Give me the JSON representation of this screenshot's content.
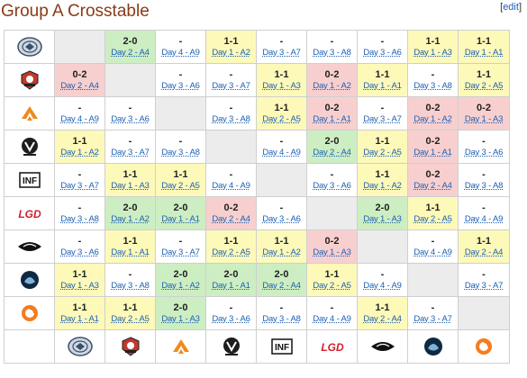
{
  "title": "Group A Crosstable",
  "edit_link": "edit",
  "teams": [
    {
      "key": "eg",
      "icon": "eg-logo-icon"
    },
    {
      "key": "mss",
      "icon": "mss-logo-icon"
    },
    {
      "key": "fnatic",
      "icon": "fnatic-logo-icon"
    },
    {
      "key": "vitality",
      "icon": "vitality-logo-icon"
    },
    {
      "key": "inf",
      "icon": "inf-logo-icon"
    },
    {
      "key": "lgd",
      "icon": "lgd-logo-icon"
    },
    {
      "key": "secret",
      "icon": "secret-logo-icon"
    },
    {
      "key": "liquid",
      "icon": "liquid-logo-icon"
    },
    {
      "key": "orange",
      "icon": "orange-logo-icon"
    }
  ],
  "rows": [
    [
      null,
      {
        "r": "w",
        "s": "2-0",
        "d": "Day 2 - A4"
      },
      {
        "r": "n",
        "s": "-",
        "d": "Day 4 - A9"
      },
      {
        "r": "d",
        "s": "1-1",
        "d": "Day 1 - A2"
      },
      {
        "r": "n",
        "s": "-",
        "d": "Day 3 - A7"
      },
      {
        "r": "n",
        "s": "-",
        "d": "Day 3 - A8"
      },
      {
        "r": "n",
        "s": "-",
        "d": "Day 3 - A6"
      },
      {
        "r": "d",
        "s": "1-1",
        "d": "Day 1 - A3"
      },
      {
        "r": "d",
        "s": "1-1",
        "d": "Day 1 - A1"
      }
    ],
    [
      {
        "r": "l",
        "s": "0-2",
        "d": "Day 2 - A4"
      },
      null,
      {
        "r": "n",
        "s": "-",
        "d": "Day 3 - A6"
      },
      {
        "r": "n",
        "s": "-",
        "d": "Day 3 - A7"
      },
      {
        "r": "d",
        "s": "1-1",
        "d": "Day 1 - A3"
      },
      {
        "r": "l",
        "s": "0-2",
        "d": "Day 1 - A2"
      },
      {
        "r": "d",
        "s": "1-1",
        "d": "Day 1 - A1"
      },
      {
        "r": "n",
        "s": "-",
        "d": "Day 3 - A8"
      },
      {
        "r": "d",
        "s": "1-1",
        "d": "Day 2 - A5"
      }
    ],
    [
      {
        "r": "n",
        "s": "-",
        "d": "Day 4 - A9"
      },
      {
        "r": "n",
        "s": "-",
        "d": "Day 3 - A6"
      },
      null,
      {
        "r": "n",
        "s": "-",
        "d": "Day 3 - A8"
      },
      {
        "r": "d",
        "s": "1-1",
        "d": "Day 2 - A5"
      },
      {
        "r": "l",
        "s": "0-2",
        "d": "Day 1 - A1"
      },
      {
        "r": "n",
        "s": "-",
        "d": "Day 3 - A7"
      },
      {
        "r": "l",
        "s": "0-2",
        "d": "Day 1 - A2"
      },
      {
        "r": "l",
        "s": "0-2",
        "d": "Day 1 - A3"
      }
    ],
    [
      {
        "r": "d",
        "s": "1-1",
        "d": "Day 1 - A2"
      },
      {
        "r": "n",
        "s": "-",
        "d": "Day 3 - A7"
      },
      {
        "r": "n",
        "s": "-",
        "d": "Day 3 - A8"
      },
      null,
      {
        "r": "n",
        "s": "-",
        "d": "Day 4 - A9"
      },
      {
        "r": "w",
        "s": "2-0",
        "d": "Day 2 - A4"
      },
      {
        "r": "d",
        "s": "1-1",
        "d": "Day 2 - A5"
      },
      {
        "r": "l",
        "s": "0-2",
        "d": "Day 1 - A1"
      },
      {
        "r": "n",
        "s": "-",
        "d": "Day 3 - A6"
      }
    ],
    [
      {
        "r": "n",
        "s": "-",
        "d": "Day 3 - A7"
      },
      {
        "r": "d",
        "s": "1-1",
        "d": "Day 1 - A3"
      },
      {
        "r": "d",
        "s": "1-1",
        "d": "Day 2 - A5"
      },
      {
        "r": "n",
        "s": "-",
        "d": "Day 4 - A9"
      },
      null,
      {
        "r": "n",
        "s": "-",
        "d": "Day 3 - A6"
      },
      {
        "r": "d",
        "s": "1-1",
        "d": "Day 1 - A2"
      },
      {
        "r": "l",
        "s": "0-2",
        "d": "Day 2 - A4"
      },
      {
        "r": "n",
        "s": "-",
        "d": "Day 3 - A8"
      }
    ],
    [
      {
        "r": "n",
        "s": "-",
        "d": "Day 3 - A8"
      },
      {
        "r": "w",
        "s": "2-0",
        "d": "Day 1 - A2"
      },
      {
        "r": "w",
        "s": "2-0",
        "d": "Day 1 - A1"
      },
      {
        "r": "l",
        "s": "0-2",
        "d": "Day 2 - A4"
      },
      {
        "r": "n",
        "s": "-",
        "d": "Day 3 - A6"
      },
      null,
      {
        "r": "w",
        "s": "2-0",
        "d": "Day 1 - A3"
      },
      {
        "r": "d",
        "s": "1-1",
        "d": "Day 2 - A5"
      },
      {
        "r": "n",
        "s": "-",
        "d": "Day 4 - A9"
      }
    ],
    [
      {
        "r": "n",
        "s": "-",
        "d": "Day 3 - A6"
      },
      {
        "r": "d",
        "s": "1-1",
        "d": "Day 1 - A1"
      },
      {
        "r": "n",
        "s": "-",
        "d": "Day 3 - A7"
      },
      {
        "r": "d",
        "s": "1-1",
        "d": "Day 2 - A5"
      },
      {
        "r": "d",
        "s": "1-1",
        "d": "Day 1 - A2"
      },
      {
        "r": "l",
        "s": "0-2",
        "d": "Day 1 - A3"
      },
      null,
      {
        "r": "n",
        "s": "-",
        "d": "Day 4 - A9"
      },
      {
        "r": "d",
        "s": "1-1",
        "d": "Day 2 - A4"
      }
    ],
    [
      {
        "r": "d",
        "s": "1-1",
        "d": "Day 1 - A3"
      },
      {
        "r": "n",
        "s": "-",
        "d": "Day 3 - A8"
      },
      {
        "r": "w",
        "s": "2-0",
        "d": "Day 1 - A2"
      },
      {
        "r": "w",
        "s": "2-0",
        "d": "Day 1 - A1"
      },
      {
        "r": "w",
        "s": "2-0",
        "d": "Day 2 - A4"
      },
      {
        "r": "d",
        "s": "1-1",
        "d": "Day 2 - A5"
      },
      {
        "r": "n",
        "s": "-",
        "d": "Day 4 - A9"
      },
      null,
      {
        "r": "n",
        "s": "-",
        "d": "Day 3 - A7"
      }
    ],
    [
      {
        "r": "d",
        "s": "1-1",
        "d": "Day 1 - A1"
      },
      {
        "r": "d",
        "s": "1-1",
        "d": "Day 2 - A5"
      },
      {
        "r": "w",
        "s": "2-0",
        "d": "Day 1 - A3"
      },
      {
        "r": "n",
        "s": "-",
        "d": "Day 3 - A6"
      },
      {
        "r": "n",
        "s": "-",
        "d": "Day 3 - A8"
      },
      {
        "r": "n",
        "s": "-",
        "d": "Day 4 - A9"
      },
      {
        "r": "d",
        "s": "1-1",
        "d": "Day 2 - A4"
      },
      {
        "r": "n",
        "s": "-",
        "d": "Day 3 - A7"
      },
      null
    ]
  ]
}
